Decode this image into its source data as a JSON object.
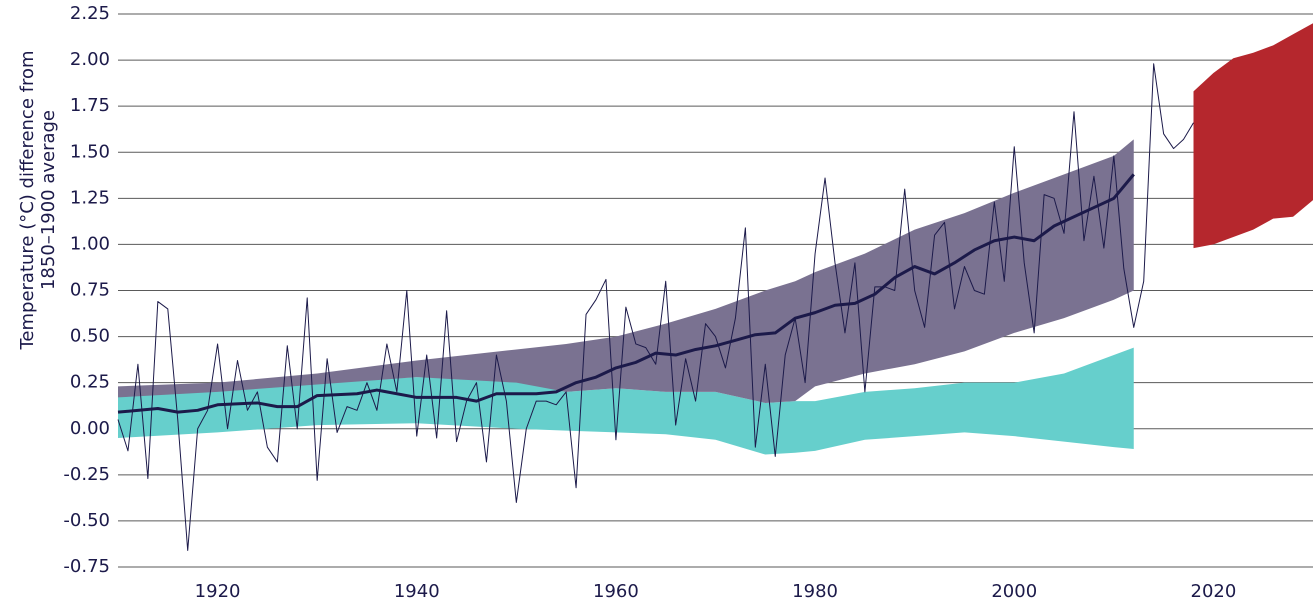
{
  "chart_data": {
    "type": "line",
    "ylabel": [
      "Temperature (°C) difference from",
      "1850–1900 average"
    ],
    "xlim": [
      1910,
      2030
    ],
    "ylim": [
      -0.75,
      2.25
    ],
    "xticks": [
      1920,
      1940,
      1960,
      1980,
      2000,
      2020
    ],
    "yticks": [
      {
        "value": -0.75,
        "label": "-0.75"
      },
      {
        "value": -0.5,
        "label": "-0.50"
      },
      {
        "value": -0.25,
        "label": "-0.25"
      },
      {
        "value": 0,
        "label": "0.00"
      },
      {
        "value": 0.25,
        "label": "0.25"
      },
      {
        "value": 0.5,
        "label": "0.50"
      },
      {
        "value": 0.75,
        "label": "0.75"
      },
      {
        "value": 1,
        "label": "1.00"
      },
      {
        "value": 1.25,
        "label": "1.25"
      },
      {
        "value": 1.5,
        "label": "1.50"
      },
      {
        "value": 1.75,
        "label": "1.75"
      },
      {
        "value": 2,
        "label": "2.00"
      },
      {
        "value": 2.25,
        "label": "2.25"
      }
    ],
    "grid": true,
    "bands": [
      {
        "color": "#66cfcc",
        "x": [
          1910,
          1920,
          1930,
          1940,
          1950,
          1955,
          1960,
          1965,
          1970,
          1975,
          1978,
          1980,
          1985,
          1990,
          1995,
          2000,
          2005,
          2010,
          2012
        ],
        "upper": [
          0.2,
          0.22,
          0.25,
          0.28,
          0.26,
          0.2,
          0.22,
          0.2,
          0.2,
          0.14,
          0.15,
          0.15,
          0.2,
          0.22,
          0.25,
          0.25,
          0.3,
          0.4,
          0.44
        ],
        "lower": [
          -0.05,
          -0.02,
          0.02,
          0.03,
          0.0,
          -0.01,
          -0.02,
          -0.03,
          -0.06,
          -0.14,
          -0.13,
          -0.12,
          -0.06,
          -0.04,
          -0.02,
          -0.04,
          -0.07,
          -0.1,
          -0.11
        ]
      },
      {
        "color": "#7a7291",
        "x": [
          1910,
          1920,
          1930,
          1940,
          1950,
          1955,
          1960,
          1965,
          1970,
          1975,
          1978,
          1980,
          1985,
          1990,
          1995,
          2000,
          2005,
          2010,
          2012
        ],
        "upper": [
          0.23,
          0.25,
          0.3,
          0.37,
          0.43,
          0.46,
          0.5,
          0.57,
          0.65,
          0.75,
          0.8,
          0.85,
          0.95,
          1.08,
          1.17,
          1.28,
          1.38,
          1.48,
          1.57
        ],
        "lower": [
          0.17,
          0.2,
          0.24,
          0.28,
          0.25,
          0.2,
          0.22,
          0.2,
          0.2,
          0.14,
          0.15,
          0.23,
          0.3,
          0.35,
          0.42,
          0.52,
          0.6,
          0.7,
          0.75
        ]
      },
      {
        "color": "#b5272d",
        "x": [
          2018,
          2020,
          2022,
          2024,
          2026,
          2028,
          2030
        ],
        "upper": [
          1.83,
          1.93,
          2.01,
          2.04,
          2.08,
          2.14,
          2.2
        ],
        "lower": [
          0.98,
          1.0,
          1.04,
          1.08,
          1.14,
          1.15,
          1.24
        ]
      }
    ],
    "lines": [
      {
        "color": "#1c1a4a",
        "width": 1,
        "x": [
          1910,
          1911,
          1912,
          1913,
          1914,
          1915,
          1916,
          1917,
          1918,
          1919,
          1920,
          1921,
          1922,
          1923,
          1924,
          1925,
          1926,
          1927,
          1928,
          1929,
          1930,
          1931,
          1932,
          1933,
          1934,
          1935,
          1936,
          1937,
          1938,
          1939,
          1940,
          1941,
          1942,
          1943,
          1944,
          1945,
          1946,
          1947,
          1948,
          1949,
          1950,
          1951,
          1952,
          1953,
          1954,
          1955,
          1956,
          1957,
          1958,
          1959,
          1960,
          1961,
          1962,
          1963,
          1964,
          1965,
          1966,
          1967,
          1968,
          1969,
          1970,
          1971,
          1972,
          1973,
          1974,
          1975,
          1976,
          1977,
          1978,
          1979,
          1980,
          1981,
          1982,
          1983,
          1984,
          1985,
          1986,
          1987,
          1988,
          1989,
          1990,
          1991,
          1992,
          1993,
          1994,
          1995,
          1996,
          1997,
          1998,
          1999,
          2000,
          2001,
          2002,
          2003,
          2004,
          2005,
          2006,
          2007,
          2008,
          2009,
          2010,
          2011,
          2012,
          2013,
          2014,
          2015,
          2016,
          2017,
          2018
        ],
        "values": [
          0.05,
          -0.12,
          0.35,
          -0.27,
          0.69,
          0.65,
          0.05,
          -0.66,
          0.0,
          0.1,
          0.46,
          0.0,
          0.37,
          0.1,
          0.2,
          -0.1,
          -0.18,
          0.45,
          0.0,
          0.71,
          -0.28,
          0.38,
          -0.02,
          0.12,
          0.1,
          0.25,
          0.1,
          0.46,
          0.2,
          0.75,
          -0.04,
          0.4,
          -0.05,
          0.64,
          -0.07,
          0.15,
          0.25,
          -0.18,
          0.4,
          0.15,
          -0.4,
          0.0,
          0.15,
          0.15,
          0.13,
          0.2,
          -0.32,
          0.62,
          0.7,
          0.81,
          -0.06,
          0.66,
          0.46,
          0.44,
          0.35,
          0.8,
          0.02,
          0.38,
          0.15,
          0.57,
          0.5,
          0.33,
          0.6,
          1.09,
          -0.1,
          0.35,
          -0.15,
          0.4,
          0.6,
          0.25,
          0.95,
          1.36,
          0.9,
          0.52,
          0.9,
          0.2,
          0.77,
          0.77,
          0.75,
          1.3,
          0.75,
          0.55,
          1.05,
          1.12,
          0.65,
          0.88,
          0.75,
          0.73,
          1.23,
          0.8,
          1.53,
          0.9,
          0.52,
          1.27,
          1.25,
          1.06,
          1.72,
          1.02,
          1.37,
          0.98,
          1.48,
          0.87,
          0.55,
          0.8,
          1.98,
          1.6,
          1.52,
          1.57,
          1.66
        ]
      },
      {
        "color": "#1c1a4a",
        "width": 3,
        "x": [
          1910,
          1914,
          1916,
          1918,
          1920,
          1924,
          1926,
          1928,
          1930,
          1934,
          1936,
          1940,
          1944,
          1946,
          1948,
          1952,
          1954,
          1956,
          1958,
          1960,
          1962,
          1964,
          1966,
          1968,
          1970,
          1972,
          1974,
          1976,
          1978,
          1980,
          1982,
          1984,
          1986,
          1988,
          1990,
          1992,
          1994,
          1996,
          1998,
          2000,
          2002,
          2004,
          2006,
          2008,
          2010,
          2012
        ],
        "values": [
          0.09,
          0.11,
          0.09,
          0.1,
          0.13,
          0.14,
          0.12,
          0.12,
          0.18,
          0.19,
          0.21,
          0.17,
          0.17,
          0.15,
          0.19,
          0.19,
          0.2,
          0.25,
          0.28,
          0.33,
          0.36,
          0.41,
          0.4,
          0.43,
          0.45,
          0.48,
          0.51,
          0.52,
          0.6,
          0.63,
          0.67,
          0.68,
          0.73,
          0.82,
          0.88,
          0.84,
          0.9,
          0.97,
          1.02,
          1.04,
          1.02,
          1.1,
          1.15,
          1.2,
          1.25,
          1.38
        ]
      }
    ]
  }
}
